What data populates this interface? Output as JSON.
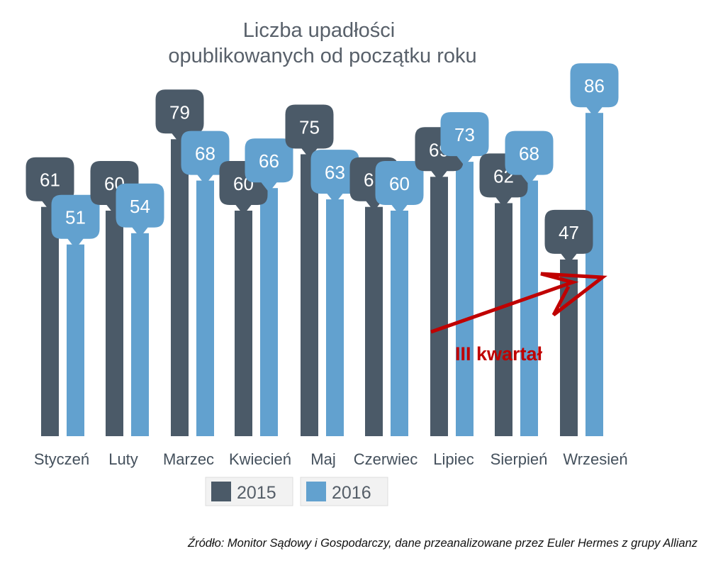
{
  "chart_data": {
    "type": "bar",
    "title": "Liczba upadłości",
    "subtitle": "opublikowanych od początku roku",
    "categories": [
      "Styczeń",
      "Luty",
      "Marzec",
      "Kwiecień",
      "Maj",
      "Czerwiec",
      "Lipiec",
      "Sierpień",
      "Wrzesień"
    ],
    "series": [
      {
        "name": "2015",
        "color": "#4b5a68",
        "values": [
          61,
          60,
          79,
          60,
          75,
          61,
          69,
          62,
          47
        ]
      },
      {
        "name": "2016",
        "color": "#62a1cf",
        "values": [
          51,
          54,
          68,
          66,
          63,
          60,
          73,
          68,
          86
        ]
      }
    ],
    "legend_position": "bottom",
    "grid": false,
    "annotation": {
      "text": "III kwartał",
      "color": "#c00000"
    }
  },
  "source": "Źródło: Monitor Sądowy i Gospodarczy, dane przeanalizowane przez Euler Hermes z grupy Allianz"
}
